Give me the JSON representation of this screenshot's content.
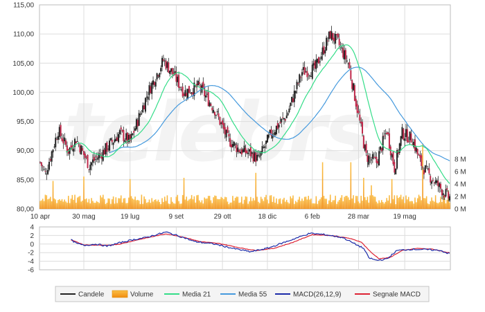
{
  "watermark": "telebrs",
  "colors": {
    "candle": "#222222",
    "candle_down": "#c0284a",
    "volume": "#f7a21b",
    "ma21": "#33dd88",
    "ma55": "#4499dd",
    "macd": "#1a2aa8",
    "signal": "#dd2233",
    "grid": "#dcdcdc",
    "frame": "#bbbbbb"
  },
  "chart_data": [
    {
      "type": "line",
      "title": "",
      "x_ticks": [
        "10 apr",
        "30 mag",
        "19 lug",
        "9 set",
        "29 ott",
        "18 dic",
        "6 feb",
        "28 mar",
        "19 mag"
      ],
      "y_ticks": [
        "115,00",
        "110,00",
        "105,00",
        "100,00",
        "95,00",
        "90,00",
        "85,00",
        "80,00"
      ],
      "ylim": [
        80,
        115
      ],
      "grid": true,
      "price": {
        "dates": [
          "10 apr",
          "30 mag",
          "19 lug",
          "9 set",
          "29 ott",
          "18 dic",
          "6 feb",
          "28 mar",
          "19 mag"
        ],
        "close_keypoints": [
          [
            0,
            88
          ],
          [
            4,
            86
          ],
          [
            14,
            93.5
          ],
          [
            22,
            90
          ],
          [
            28,
            92
          ],
          [
            38,
            87.5
          ],
          [
            50,
            90
          ],
          [
            62,
            93
          ],
          [
            70,
            91.5
          ],
          [
            84,
            100
          ],
          [
            96,
            105.5
          ],
          [
            104,
            103
          ],
          [
            112,
            100
          ],
          [
            124,
            101
          ],
          [
            136,
            97
          ],
          [
            146,
            92
          ],
          [
            156,
            90
          ],
          [
            164,
            89.5
          ],
          [
            170,
            88.5
          ],
          [
            180,
            93
          ],
          [
            192,
            96
          ],
          [
            204,
            103.5
          ],
          [
            214,
            104
          ],
          [
            226,
            110
          ],
          [
            232,
            108.5
          ],
          [
            240,
            105
          ],
          [
            248,
            96
          ],
          [
            254,
            89
          ],
          [
            262,
            88
          ],
          [
            270,
            93.5
          ],
          [
            276,
            87
          ],
          [
            282,
            93
          ],
          [
            290,
            92
          ],
          [
            296,
            88
          ],
          [
            302,
            86
          ],
          [
            312,
            83.5
          ],
          [
            318,
            82
          ]
        ]
      },
      "series": [
        {
          "name": "Media 21"
        },
        {
          "name": "Media 55"
        }
      ]
    },
    {
      "type": "bar",
      "y2_ticks": [
        "8 M",
        "6 M",
        "4 M",
        "2 M",
        "0 M"
      ],
      "y2lim": [
        0,
        10
      ],
      "volume_spikes": [
        [
          10,
          4.5
        ],
        [
          34,
          5.2
        ],
        [
          70,
          4.8
        ],
        [
          112,
          5.0
        ],
        [
          168,
          5.8
        ],
        [
          220,
          7.5
        ],
        [
          242,
          7.5
        ],
        [
          252,
          5.0
        ],
        [
          258,
          3.8
        ],
        [
          274,
          4.8
        ],
        [
          298,
          10.5
        ],
        [
          318,
          3.0
        ]
      ],
      "volume_base": 1.7
    },
    {
      "type": "line",
      "y_ticks": [
        "4",
        "2",
        "0",
        "-2",
        "-4",
        "-6"
      ],
      "ylim": [
        -6,
        4
      ],
      "macd_keypoints": [
        [
          24,
          1
        ],
        [
          28,
          0.2
        ],
        [
          34,
          -0.3
        ],
        [
          44,
          0
        ],
        [
          52,
          -0.5
        ],
        [
          62,
          0.3
        ],
        [
          72,
          1
        ],
        [
          82,
          1.5
        ],
        [
          98,
          2.8
        ],
        [
          112,
          1.5
        ],
        [
          120,
          0.6
        ],
        [
          136,
          0
        ],
        [
          150,
          -1
        ],
        [
          164,
          -1.8
        ],
        [
          178,
          -0.9
        ],
        [
          192,
          0.6
        ],
        [
          210,
          2.5
        ],
        [
          222,
          2.2
        ],
        [
          236,
          1.5
        ],
        [
          244,
          0.2
        ],
        [
          252,
          -1
        ],
        [
          256,
          -3.2
        ],
        [
          262,
          -3.8
        ],
        [
          270,
          -3.5
        ],
        [
          278,
          -1.5
        ],
        [
          290,
          -1.2
        ],
        [
          302,
          -1.3
        ],
        [
          312,
          -1.5
        ],
        [
          318,
          -2.2
        ]
      ],
      "signal_keypoints": [
        [
          24,
          1
        ],
        [
          34,
          -0.2
        ],
        [
          52,
          -0.3
        ],
        [
          62,
          0
        ],
        [
          76,
          1
        ],
        [
          98,
          2.4
        ],
        [
          112,
          1.6
        ],
        [
          124,
          0.6
        ],
        [
          140,
          0.1
        ],
        [
          156,
          -0.9
        ],
        [
          168,
          -1.5
        ],
        [
          182,
          -1
        ],
        [
          196,
          0.3
        ],
        [
          212,
          2.2
        ],
        [
          226,
          2
        ],
        [
          240,
          1.4
        ],
        [
          250,
          0.5
        ],
        [
          258,
          -2
        ],
        [
          264,
          -3.4
        ],
        [
          272,
          -3.2
        ],
        [
          282,
          -1.5
        ],
        [
          294,
          -1
        ],
        [
          306,
          -1.2
        ],
        [
          318,
          -2
        ]
      ]
    }
  ],
  "legend": [
    {
      "key": "candle",
      "label": "Candele",
      "icon": "line-icon"
    },
    {
      "key": "volume",
      "label": "Volume",
      "icon": "bar-icon"
    },
    {
      "key": "ma21",
      "label": "Media 21",
      "icon": "line-icon"
    },
    {
      "key": "ma55",
      "label": "Media 55",
      "icon": "line-icon"
    },
    {
      "key": "macd",
      "label": "MACD(26,12,9)",
      "icon": "line-icon"
    },
    {
      "key": "signal",
      "label": "Segnale MACD",
      "icon": "line-icon"
    }
  ]
}
